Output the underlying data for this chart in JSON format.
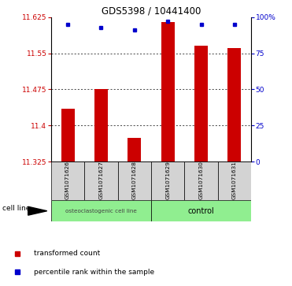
{
  "title": "GDS5398 / 10441400",
  "samples": [
    "GSM1071626",
    "GSM1071627",
    "GSM1071628",
    "GSM1071629",
    "GSM1071630",
    "GSM1071631"
  ],
  "red_values": [
    11.435,
    11.475,
    11.375,
    11.615,
    11.565,
    11.56
  ],
  "blue_values": [
    95,
    93,
    91,
    97,
    95,
    95
  ],
  "ylim_left": [
    11.325,
    11.625
  ],
  "ylim_right": [
    0,
    100
  ],
  "yticks_left": [
    11.325,
    11.4,
    11.475,
    11.55,
    11.625
  ],
  "yticks_right": [
    0,
    25,
    50,
    75,
    100
  ],
  "ytick_labels_right": [
    "0",
    "25",
    "50",
    "75",
    "100%"
  ],
  "group1_label": "osteoclastogenic cell line",
  "group2_label": "control",
  "cell_line_label": "cell line",
  "legend_red": "transformed count",
  "legend_blue": "percentile rank within the sample",
  "bar_color": "#cc0000",
  "dot_color": "#0000cc",
  "group_color": "#90ee90",
  "bg_color": "#d3d3d3",
  "bar_width": 0.4,
  "base_value": 11.325
}
